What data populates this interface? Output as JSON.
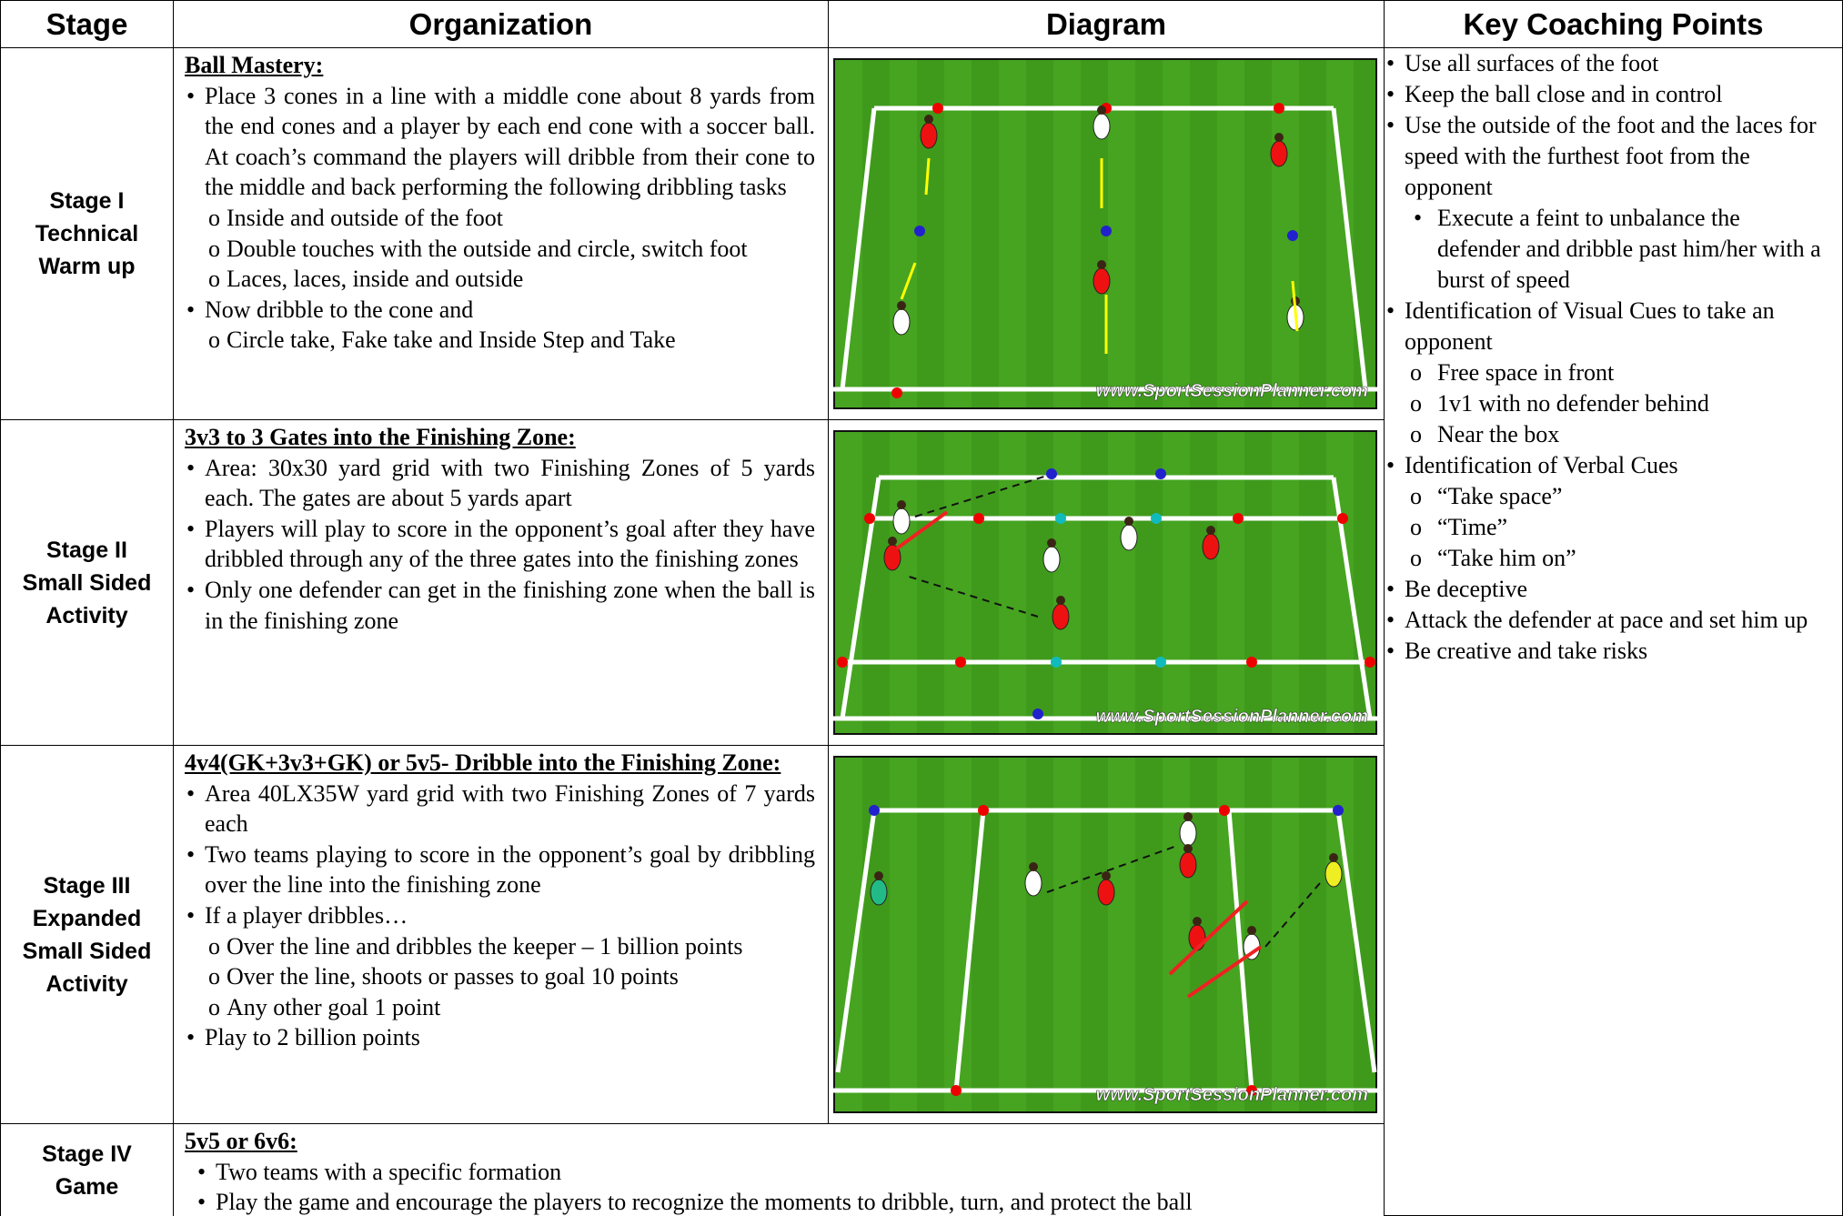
{
  "header": [
    "Stage",
    "Organization",
    "Diagram",
    "Key Coaching Points"
  ],
  "rows": [
    {
      "stage": [
        "Stage I",
        "Technical",
        "Warm up"
      ],
      "title": "Ball Mastery:",
      "items": [
        {
          "text": "Place 3 cones in a line with a middle cone about 8 yards from the end cones and a player by each end cone with a soccer ball. At coach’s command the players will dribble from their cone to the middle and back performing the following dribbling tasks",
          "sub": [
            "Inside and outside of the foot",
            "Double touches with the outside and circle, switch foot",
            "Laces, laces, inside and outside"
          ]
        },
        {
          "text": "Now dribble to the cone and",
          "sub": [
            "Circle take, Fake take and Inside Step and Take"
          ]
        }
      ],
      "diagram_watermark": "www.SportSessionPlanner.com"
    },
    {
      "stage": [
        "Stage II",
        "Small Sided",
        "Activity"
      ],
      "title": "3v3 to 3  Gates into  the Finishing Zone:",
      "items": [
        {
          "text": "Area: 30x30 yard grid with two Finishing Zones of 5 yards each. The gates are about 5 yards apart"
        },
        {
          "text": "Players will play to score in the opponent’s goal after they have dribbled through any of the three gates into the finishing zones"
        },
        {
          "text": "Only one defender can get in the finishing zone when the ball is in the finishing zone"
        }
      ],
      "diagram_watermark": "www.SportSessionPlanner.com"
    },
    {
      "stage": [
        "Stage III",
        "Expanded",
        "Small Sided",
        "Activity"
      ],
      "title": "4v4(GK+3v3+GK) or 5v5- Dribble into the Finishing Zone:",
      "items": [
        {
          "text": "Area 40LX35W yard grid with two Finishing Zones of 7 yards each"
        },
        {
          "text": "Two teams playing to score in the opponent’s goal by dribbling over the line into the finishing zone"
        },
        {
          "text": "If a player dribbles…",
          "sub": [
            "Over the line and dribbles the keeper – 1 billion points",
            "Over the line, shoots or passes to goal 10 points",
            "Any other goal 1 point"
          ]
        },
        {
          "text": "Play to 2 billion points"
        }
      ],
      "diagram_watermark": "www.SportSessionPlanner.com"
    },
    {
      "stage": [
        "Stage IV",
        "Game"
      ],
      "title": "5v5 or 6v6:",
      "items": [
        {
          "text": "Two teams with a specific formation"
        },
        {
          "text": "Play the game and encourage the players to recognize the moments to dribble, turn, and protect the ball"
        }
      ]
    }
  ],
  "key_points": [
    {
      "text": "Use all surfaces of the foot"
    },
    {
      "text": "Keep the ball close and in control"
    },
    {
      "text": "Use the outside of the foot and the laces for speed with the furthest foot from the opponent",
      "sub": [
        "Execute a feint to unbalance the defender and dribble past him/her with a burst of speed"
      ]
    },
    {
      "text": "Identification of Visual Cues to take an opponent",
      "sub": [
        "Free space in front",
        "1v1 with no defender behind",
        "Near the box"
      ]
    },
    {
      "text": "Identification of Verbal Cues",
      "sub": [
        "“Take space”",
        "“Time”",
        "“Take him on”"
      ]
    },
    {
      "text": "Be deceptive"
    },
    {
      "text": "Attack the defender at pace and set him up"
    },
    {
      "text": "Be creative and take risks"
    }
  ]
}
